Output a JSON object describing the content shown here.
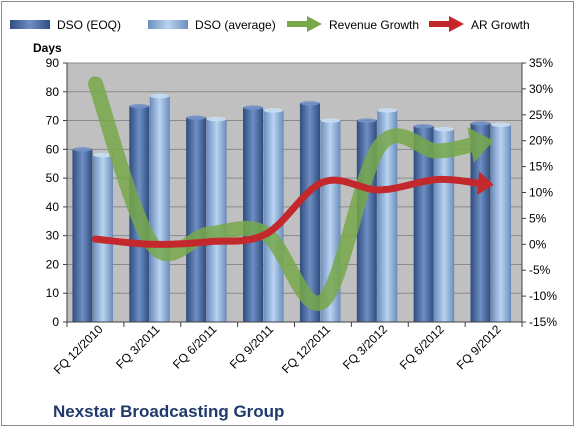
{
  "chart_data": {
    "type": "bar",
    "title": "Nexstar Broadcasting Group",
    "ylabel_left": "Days",
    "categories": [
      "FQ 12/2010",
      "FQ 3/2011",
      "FQ 6/2011",
      "FQ 9/2011",
      "FQ 12/2011",
      "FQ 3/2012",
      "FQ 6/2012",
      "FQ 9/2012"
    ],
    "left_axis": {
      "min": 0,
      "max": 90,
      "step": 10,
      "ticks": [
        "0",
        "10",
        "20",
        "30",
        "40",
        "50",
        "60",
        "70",
        "80",
        "90"
      ]
    },
    "right_axis": {
      "min": -15,
      "max": 35,
      "step": 5,
      "ticks": [
        "-15%",
        "-10%",
        "-5%",
        "0%",
        "5%",
        "10%",
        "15%",
        "20%",
        "25%",
        "30%",
        "35%"
      ]
    },
    "bar_series": [
      {
        "name": "DSO (EOQ)",
        "values": [
          60,
          75,
          71,
          74.5,
          76,
          70,
          68,
          69
        ],
        "color": "#4f6ea3"
      },
      {
        "name": "DSO (average)",
        "values": [
          58,
          78.5,
          70.5,
          73.5,
          70,
          73.5,
          67,
          68.5
        ],
        "color": "#93b3d9"
      }
    ],
    "line_series": [
      {
        "name": "Revenue Growth",
        "unit": "%",
        "values": [
          31,
          0,
          2,
          2,
          -11,
          19,
          18,
          20
        ],
        "color": "#77a84a"
      },
      {
        "name": "AR Growth",
        "unit": "%",
        "values": [
          1,
          0,
          0.5,
          2,
          12,
          10.5,
          12.5,
          11.5
        ],
        "color": "#c3282d"
      }
    ],
    "legend_position": "top",
    "grid": true
  },
  "colors": {
    "plot_background": "#c0c0c0",
    "bar_eoq": "#4f6ea3",
    "bar_avg": "#93b3d9",
    "revenue_line": "#77a84a",
    "ar_line": "#c3282d"
  }
}
